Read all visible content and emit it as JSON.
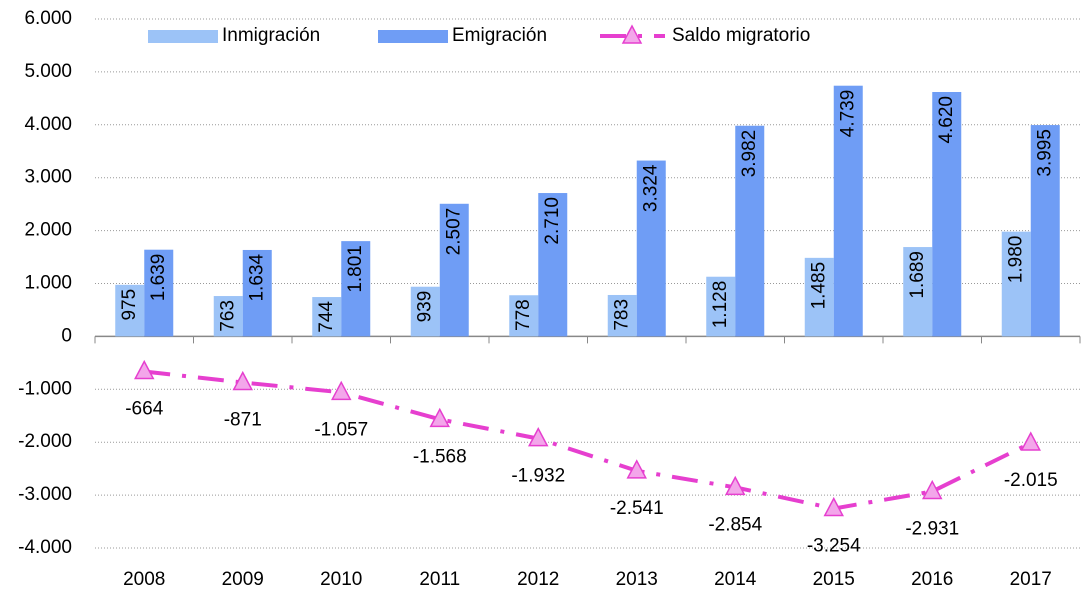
{
  "chart_data": {
    "type": "bar_line",
    "categories": [
      "2008",
      "2009",
      "2010",
      "2011",
      "2012",
      "2013",
      "2014",
      "2015",
      "2016",
      "2017"
    ],
    "series": [
      {
        "name": "Inmigración",
        "type": "bar",
        "color": "#9cc3f7",
        "values": [
          975,
          763,
          744,
          939,
          778,
          783,
          1128,
          1485,
          1689,
          1980
        ],
        "value_labels": [
          "975",
          "763",
          "744",
          "939",
          "778",
          "783",
          "1.128",
          "1.485",
          "1.689",
          "1.980"
        ]
      },
      {
        "name": "Emigración",
        "type": "bar",
        "color": "#6f9df5",
        "values": [
          1639,
          1634,
          1801,
          2507,
          2710,
          3324,
          3982,
          4739,
          4620,
          3995
        ],
        "value_labels": [
          "1.639",
          "1.634",
          "1.801",
          "2.507",
          "2.710",
          "3.324",
          "3.982",
          "4.739",
          "4.620",
          "3.995"
        ]
      },
      {
        "name": "Saldo migratorio",
        "type": "line",
        "color": "#e63fcf",
        "marker_color": "#f3a6ea",
        "values": [
          -664,
          -871,
          -1057,
          -1568,
          -1932,
          -2541,
          -2854,
          -3254,
          -2931,
          -2015
        ],
        "value_labels": [
          "-664",
          "-871",
          "-1.057",
          "-1.568",
          "-1.932",
          "-2.541",
          "-2.854",
          "-3.254",
          "-2.931",
          "-2.015"
        ]
      }
    ],
    "ylim": [
      -4000,
      6000
    ],
    "yticks": [
      {
        "value": -4000,
        "label": "-4.000"
      },
      {
        "value": -3000,
        "label": "-3.000"
      },
      {
        "value": -2000,
        "label": "-2.000"
      },
      {
        "value": -1000,
        "label": "-1.000"
      },
      0,
      {
        "value": 1000,
        "label": "1.000"
      },
      {
        "value": 2000,
        "label": "2.000"
      },
      {
        "value": 3000,
        "label": "3.000"
      },
      {
        "value": 4000,
        "label": "4.000"
      },
      {
        "value": 5000,
        "label": "5.000"
      },
      {
        "value": 6000,
        "label": "6.000"
      }
    ],
    "grid": true,
    "legend": "top"
  }
}
